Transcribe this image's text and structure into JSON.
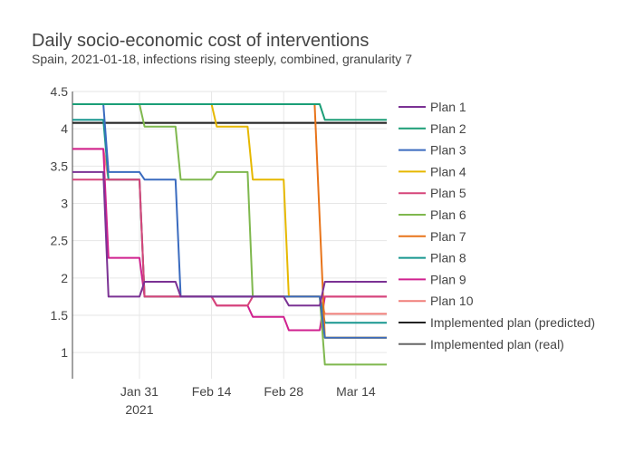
{
  "chart_data": {
    "type": "line",
    "title": "Daily socio-economic cost of interventions",
    "subtitle": "Spain, 2021-01-18, infections rising steeply, combined, granularity 7",
    "x_range": [
      "2021-01-18",
      "2021-03-20"
    ],
    "ylim": [
      0.65,
      4.5
    ],
    "y_ticks": [
      1,
      1.5,
      2,
      2.5,
      3,
      3.5,
      4,
      4.5
    ],
    "y_tick_labels": [
      "1",
      "1.5",
      "2",
      "2.5",
      "3",
      "3.5",
      "4",
      "4.5"
    ],
    "x_ticks": [
      "2021-01-31",
      "2021-02-14",
      "2021-02-28",
      "2021-03-14"
    ],
    "x_tick_labels": [
      "Jan 31",
      "Feb 14",
      "Feb 28",
      "Mar 14"
    ],
    "x_tick_year_label": "2021",
    "grid": true,
    "legend_position": "right",
    "series": [
      {
        "name": "Plan 1",
        "color": "#7b3294",
        "points": [
          [
            "2021-01-18",
            3.42
          ],
          [
            "2021-01-24",
            3.42
          ],
          [
            "2021-01-25",
            1.75
          ],
          [
            "2021-01-31",
            1.75
          ],
          [
            "2021-02-01",
            1.95
          ],
          [
            "2021-02-07",
            1.95
          ],
          [
            "2021-02-08",
            1.75
          ],
          [
            "2021-02-28",
            1.75
          ],
          [
            "2021-03-01",
            1.63
          ],
          [
            "2021-03-07",
            1.63
          ],
          [
            "2021-03-08",
            1.95
          ],
          [
            "2021-03-20",
            1.95
          ]
        ]
      },
      {
        "name": "Plan 2",
        "color": "#1b9e77",
        "points": [
          [
            "2021-01-18",
            4.33
          ],
          [
            "2021-03-07",
            4.33
          ],
          [
            "2021-03-08",
            4.12
          ],
          [
            "2021-03-20",
            4.12
          ]
        ]
      },
      {
        "name": "Plan 3",
        "color": "#3a6bbf",
        "points": [
          [
            "2021-01-18",
            4.33
          ],
          [
            "2021-01-24",
            4.33
          ],
          [
            "2021-01-25",
            3.42
          ],
          [
            "2021-01-31",
            3.42
          ],
          [
            "2021-02-01",
            3.32
          ],
          [
            "2021-02-07",
            3.32
          ],
          [
            "2021-02-08",
            1.75
          ],
          [
            "2021-02-28",
            1.75
          ],
          [
            "2021-03-01",
            1.75
          ],
          [
            "2021-03-07",
            1.75
          ],
          [
            "2021-03-08",
            1.2
          ],
          [
            "2021-03-20",
            1.2
          ]
        ]
      },
      {
        "name": "Plan 4",
        "color": "#e6b800",
        "points": [
          [
            "2021-01-18",
            4.33
          ],
          [
            "2021-02-14",
            4.33
          ],
          [
            "2021-02-15",
            4.03
          ],
          [
            "2021-02-21",
            4.03
          ],
          [
            "2021-02-22",
            3.32
          ],
          [
            "2021-02-28",
            3.32
          ],
          [
            "2021-03-01",
            1.75
          ],
          [
            "2021-03-07",
            1.75
          ],
          [
            "2021-03-08",
            1.2
          ],
          [
            "2021-03-20",
            1.2
          ]
        ]
      },
      {
        "name": "Plan 5",
        "color": "#d6457a",
        "points": [
          [
            "2021-01-18",
            3.32
          ],
          [
            "2021-01-24",
            3.32
          ],
          [
            "2021-01-25",
            3.32
          ],
          [
            "2021-01-31",
            3.32
          ],
          [
            "2021-02-01",
            1.75
          ],
          [
            "2021-02-14",
            1.75
          ],
          [
            "2021-02-15",
            1.63
          ],
          [
            "2021-02-21",
            1.63
          ],
          [
            "2021-02-22",
            1.75
          ],
          [
            "2021-03-07",
            1.75
          ],
          [
            "2021-03-08",
            1.75
          ],
          [
            "2021-03-20",
            1.75
          ]
        ]
      },
      {
        "name": "Plan 6",
        "color": "#7fb84e",
        "points": [
          [
            "2021-01-18",
            4.33
          ],
          [
            "2021-01-31",
            4.33
          ],
          [
            "2021-02-01",
            4.03
          ],
          [
            "2021-02-07",
            4.03
          ],
          [
            "2021-02-08",
            3.32
          ],
          [
            "2021-02-14",
            3.32
          ],
          [
            "2021-02-15",
            3.42
          ],
          [
            "2021-02-21",
            3.42
          ],
          [
            "2021-02-22",
            1.75
          ],
          [
            "2021-03-07",
            1.75
          ],
          [
            "2021-03-08",
            0.84
          ],
          [
            "2021-03-20",
            0.84
          ]
        ]
      },
      {
        "name": "Plan 7",
        "color": "#e8741a",
        "points": [
          [
            "2021-01-18",
            4.33
          ],
          [
            "2021-03-06",
            4.33
          ],
          [
            "2021-03-08",
            1.2
          ],
          [
            "2021-03-20",
            1.2
          ]
        ]
      },
      {
        "name": "Plan 8",
        "color": "#17968f",
        "points": [
          [
            "2021-01-18",
            4.12
          ],
          [
            "2021-01-24",
            4.12
          ],
          [
            "2021-01-25",
            3.32
          ],
          [
            "2021-01-31",
            3.32
          ],
          [
            "2021-02-01",
            1.75
          ],
          [
            "2021-03-07",
            1.75
          ],
          [
            "2021-03-08",
            1.4
          ],
          [
            "2021-03-20",
            1.4
          ]
        ]
      },
      {
        "name": "Plan 9",
        "color": "#d0218f",
        "points": [
          [
            "2021-01-18",
            3.73
          ],
          [
            "2021-01-24",
            3.73
          ],
          [
            "2021-01-25",
            2.27
          ],
          [
            "2021-01-31",
            2.27
          ],
          [
            "2021-02-01",
            1.75
          ],
          [
            "2021-02-14",
            1.75
          ],
          [
            "2021-02-15",
            1.63
          ],
          [
            "2021-02-21",
            1.63
          ],
          [
            "2021-02-22",
            1.48
          ],
          [
            "2021-02-28",
            1.48
          ],
          [
            "2021-03-01",
            1.3
          ],
          [
            "2021-03-07",
            1.3
          ],
          [
            "2021-03-08",
            1.75
          ],
          [
            "2021-03-20",
            1.75
          ]
        ]
      },
      {
        "name": "Plan 10",
        "color": "#f07f7a",
        "points": [
          [
            "2021-01-18",
            3.73
          ],
          [
            "2021-01-24",
            3.73
          ],
          [
            "2021-01-25",
            3.32
          ],
          [
            "2021-01-31",
            3.32
          ],
          [
            "2021-02-01",
            1.75
          ],
          [
            "2021-03-07",
            1.75
          ],
          [
            "2021-03-08",
            1.52
          ],
          [
            "2021-03-20",
            1.52
          ]
        ]
      },
      {
        "name": "Implemented plan (predicted)",
        "color": "#222222",
        "points": [
          [
            "2021-01-18",
            4.08
          ],
          [
            "2021-03-20",
            4.08
          ]
        ]
      },
      {
        "name": "Implemented plan (real)",
        "color": "#666666",
        "points": [
          [
            "2021-01-18",
            4.08
          ],
          [
            "2021-03-20",
            4.08
          ]
        ]
      }
    ]
  }
}
